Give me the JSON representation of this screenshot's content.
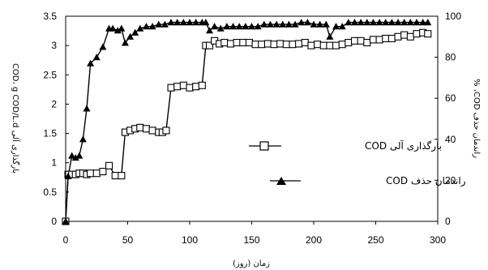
{
  "chart_data": {
    "type": "line",
    "xlabel": "زمان (روز)",
    "ylabel_left": "بارگذاری آلی COD، g COD/L.d",
    "ylabel_right": "راندمان حذف COD، %",
    "xlim": [
      0,
      300
    ],
    "ylim_left": [
      0,
      3.5
    ],
    "ylim_right": [
      0,
      100
    ],
    "x_ticks": [
      "0",
      "50",
      "100",
      "150",
      "200",
      "250",
      "300"
    ],
    "y_left_ticks": [
      "0",
      "0.5",
      "1",
      "1.5",
      "2",
      "2.5",
      "3",
      "3.5"
    ],
    "y_right_ticks": [
      "0",
      "20",
      "40",
      "60",
      "80",
      "100"
    ],
    "grid": false,
    "legend_position": "center-right",
    "series": [
      {
        "name": "بارگذاری آلی COD",
        "axis": "left",
        "marker": "open-square",
        "color": "#000000",
        "x": [
          0,
          2,
          5,
          8,
          11,
          14,
          17,
          20,
          25,
          30,
          35,
          40,
          45,
          48,
          52,
          56,
          60,
          65,
          70,
          75,
          78,
          81,
          85,
          90,
          95,
          100,
          105,
          110,
          113,
          116,
          120,
          124,
          128,
          133,
          138,
          143,
          148,
          153,
          158,
          163,
          168,
          173,
          178,
          183,
          188,
          193,
          198,
          203,
          208,
          213,
          218,
          223,
          228,
          233,
          238,
          243,
          248,
          253,
          258,
          263,
          268,
          273,
          278,
          283,
          288,
          292
        ],
        "y": [
          0,
          0.8,
          0.8,
          0.8,
          0.82,
          0.82,
          0.8,
          0.82,
          0.82,
          0.85,
          0.95,
          0.78,
          0.78,
          1.52,
          1.55,
          1.58,
          1.6,
          1.58,
          1.55,
          1.52,
          1.52,
          1.55,
          2.28,
          2.3,
          2.32,
          2.28,
          2.3,
          2.32,
          3.0,
          3.0,
          3.08,
          3.03,
          3.05,
          3.03,
          3.05,
          3.05,
          3.05,
          3.02,
          3.02,
          3.03,
          3.02,
          3.03,
          3.02,
          3.02,
          3.03,
          3.05,
          3.0,
          3.02,
          3.0,
          3.0,
          3.0,
          3.02,
          3.05,
          3.08,
          3.08,
          3.05,
          3.1,
          3.1,
          3.12,
          3.12,
          3.15,
          3.18,
          3.15,
          3.2,
          3.22,
          3.2
        ]
      },
      {
        "name": "راندمان حذف COD",
        "axis": "right",
        "marker": "filled-triangle",
        "color": "#000000",
        "x": [
          0,
          2,
          5,
          8,
          11,
          14,
          17,
          20,
          25,
          30,
          35,
          38,
          42,
          45,
          48,
          52,
          56,
          60,
          65,
          70,
          75,
          80,
          85,
          90,
          95,
          100,
          105,
          110,
          113,
          116,
          120,
          125,
          130,
          135,
          140,
          145,
          150,
          155,
          160,
          165,
          170,
          175,
          180,
          185,
          190,
          195,
          200,
          205,
          210,
          213,
          218,
          223,
          228,
          233,
          238,
          243,
          248,
          253,
          258,
          263,
          268,
          273,
          278,
          283,
          288,
          292
        ],
        "y": [
          0,
          22,
          32,
          31,
          32,
          40,
          55,
          77,
          80,
          85,
          94,
          94,
          93,
          94,
          87,
          90,
          92,
          94,
          95,
          95,
          96,
          96,
          97,
          97,
          97,
          97,
          97,
          97,
          97,
          93,
          95,
          94,
          95,
          95,
          95,
          95,
          95,
          95,
          96,
          96,
          96,
          96,
          96,
          96,
          97,
          97,
          96,
          96,
          96,
          90,
          95,
          95,
          97,
          97,
          97,
          97,
          97,
          97,
          97,
          97,
          97,
          97,
          97,
          97,
          97,
          97
        ]
      }
    ]
  }
}
